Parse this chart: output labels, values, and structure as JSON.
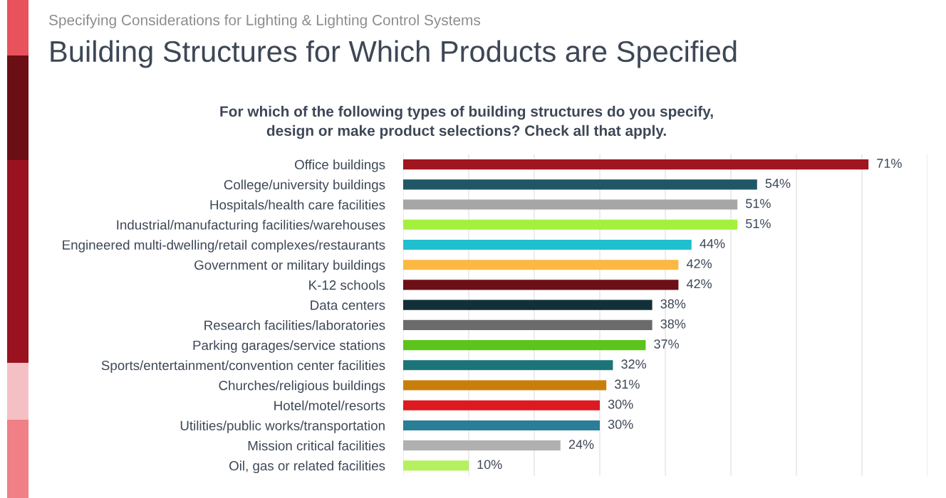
{
  "chart_data": {
    "type": "bar",
    "orientation": "horizontal",
    "title": "Building Structures for Which Products are Specified",
    "subtitle": "For which of the following types of building structures do you specify,\ndesign or make product selections? Check all that apply.",
    "annotations": [
      "Specifying Considerations for Lighting & Lighting Control Systems"
    ],
    "categories": [
      "Office buildings",
      "College/university buildings",
      "Hospitals/health care facilities",
      "Industrial/manufacturing facilities/warehouses",
      "Engineered multi-dwelling/retail complexes/restaurants",
      "Government or military buildings",
      "K-12 schools",
      "Data centers",
      "Research facilities/laboratories",
      "Parking garages/service stations",
      "Sports/entertainment/convention center facilities",
      "Churches/religious buildings",
      "Hotel/motel/resorts",
      "Utilities/public works/transportation",
      "Mission critical facilities",
      "Oil, gas or related facilities"
    ],
    "values": [
      71,
      54,
      51,
      51,
      44,
      42,
      42,
      38,
      38,
      37,
      32,
      31,
      30,
      30,
      24,
      10
    ],
    "value_labels": [
      "71%",
      "54%",
      "51%",
      "51%",
      "44%",
      "42%",
      "42%",
      "38%",
      "38%",
      "37%",
      "32%",
      "31%",
      "30%",
      "30%",
      "24%",
      "10%"
    ],
    "colors": [
      "#a01520",
      "#1f5766",
      "#a6a6a6",
      "#a4f03c",
      "#1fbfcf",
      "#fbb842",
      "#6d0f16",
      "#12303a",
      "#6b6b6b",
      "#5cc41a",
      "#1c7478",
      "#c87f0a",
      "#dd1a22",
      "#2a7e98",
      "#b0b0b0",
      "#b6f060"
    ],
    "xlim": [
      0,
      80
    ],
    "xticks": [
      {
        "value": 0,
        "label": null
      },
      {
        "value": 10,
        "label": null
      },
      {
        "value": 20,
        "label": null
      },
      {
        "value": 30,
        "label": null
      },
      {
        "value": 40,
        "label": null
      },
      {
        "value": 50,
        "label": null
      },
      {
        "value": 60,
        "label": null
      },
      {
        "value": 70,
        "label": null
      },
      {
        "value": 80,
        "label": null
      }
    ],
    "grid": "x",
    "tick_labels": "y"
  }
}
